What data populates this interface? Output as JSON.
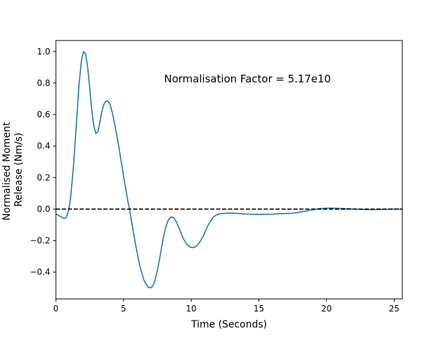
{
  "chart_data": {
    "type": "line",
    "title": "",
    "xlabel": "Time (Seconds)",
    "ylabel": "Normalised Moment Release (Nm/s)",
    "ylabel_lines": [
      "Normalised Moment",
      "Release (Nm/s)"
    ],
    "annotation": "Normalisation Factor = 5.17e10",
    "xlim": [
      0,
      25.6
    ],
    "ylim": [
      -0.57,
      1.07
    ],
    "x_ticks": [
      0,
      5,
      10,
      15,
      20,
      25
    ],
    "y_ticks": [
      -0.4,
      -0.2,
      0.0,
      0.2,
      0.4,
      0.6,
      0.8,
      1.0
    ],
    "x_tick_labels": [
      "0",
      "5",
      "10",
      "15",
      "20",
      "25"
    ],
    "y_tick_labels": [
      "−0.4",
      "−0.2",
      "0.0",
      "0.2",
      "0.4",
      "0.6",
      "0.8",
      "1.0"
    ],
    "grid": false,
    "series": [
      {
        "color": "#1f77b4",
        "style": "solid",
        "x": [
          0,
          0.3,
          0.6,
          0.75,
          0.95,
          1.1,
          1.3,
          1.5,
          1.7,
          1.9,
          2.05,
          2.2,
          2.35,
          2.5,
          2.65,
          2.8,
          2.95,
          3.1,
          3.25,
          3.4,
          3.55,
          3.7,
          3.85,
          4.0,
          4.15,
          4.3,
          4.5,
          4.7,
          5.0,
          5.3,
          5.6,
          5.9,
          6.2,
          6.5,
          6.8,
          7.0,
          7.15,
          7.3,
          7.5,
          7.7,
          7.9,
          8.1,
          8.3,
          8.5,
          8.7,
          8.9,
          9.1,
          9.3,
          9.5,
          9.7,
          9.9,
          10.1,
          10.3,
          10.5,
          10.7,
          10.9,
          11.05,
          11.2,
          11.4,
          11.6,
          11.8,
          12.0,
          12.3,
          12.6,
          12.9,
          13.2,
          13.5,
          13.8,
          14.2,
          14.6,
          15.0,
          15.5,
          16.0,
          16.5,
          17.0,
          17.5,
          18.0,
          18.5,
          19.0,
          19.5,
          20.0,
          20.4,
          20.8,
          21.2,
          21.6,
          22.0,
          22.5,
          23.0,
          23.5,
          24.0,
          24.5,
          25.0,
          25.6
        ],
        "y": [
          -0.03,
          -0.045,
          -0.06,
          -0.055,
          -0.01,
          0.08,
          0.27,
          0.52,
          0.78,
          0.95,
          1.0,
          0.985,
          0.9,
          0.77,
          0.63,
          0.53,
          0.48,
          0.49,
          0.55,
          0.62,
          0.665,
          0.685,
          0.685,
          0.665,
          0.62,
          0.56,
          0.47,
          0.37,
          0.21,
          0.06,
          -0.08,
          -0.23,
          -0.36,
          -0.45,
          -0.495,
          -0.5,
          -0.49,
          -0.46,
          -0.39,
          -0.3,
          -0.2,
          -0.12,
          -0.07,
          -0.05,
          -0.055,
          -0.08,
          -0.12,
          -0.165,
          -0.2,
          -0.225,
          -0.24,
          -0.245,
          -0.24,
          -0.225,
          -0.2,
          -0.17,
          -0.14,
          -0.11,
          -0.08,
          -0.055,
          -0.04,
          -0.032,
          -0.028,
          -0.026,
          -0.025,
          -0.026,
          -0.028,
          -0.03,
          -0.032,
          -0.033,
          -0.034,
          -0.033,
          -0.032,
          -0.03,
          -0.028,
          -0.026,
          -0.02,
          -0.012,
          -0.004,
          0.003,
          0.006,
          0.006,
          0.005,
          0.004,
          0.002,
          0.0,
          -0.002,
          -0.003,
          -0.003,
          -0.002,
          -0.001,
          0.0,
          0.0
        ]
      },
      {
        "color": "#000000",
        "style": "dashed",
        "x": [
          0,
          25.6
        ],
        "y": [
          0,
          0
        ]
      }
    ]
  }
}
